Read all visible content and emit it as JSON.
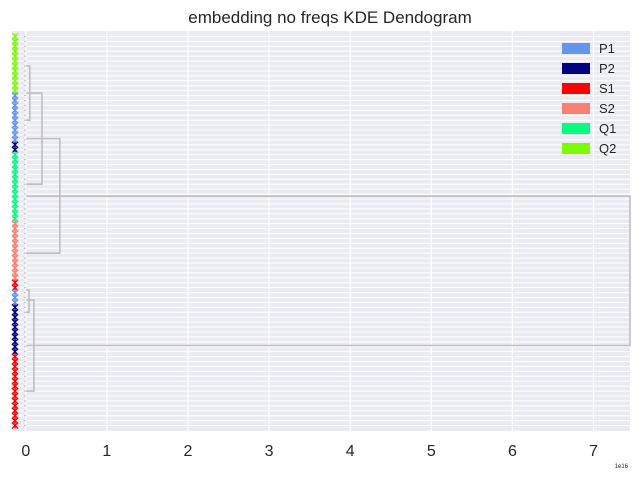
{
  "chart_data": {
    "type": "dendrogram",
    "title": "embedding no freqs KDE Dendogram",
    "orientation": "horizontal",
    "xlabel": "",
    "ylabel": "",
    "xlim": [
      -0.17,
      7.45
    ],
    "x_ticks": [
      0,
      1,
      2,
      3,
      4,
      5,
      6,
      7
    ],
    "x_tick_labels": [
      "0",
      "1",
      "2",
      "3",
      "4",
      "5",
      "6",
      "7"
    ],
    "x_offset_label": "1e16",
    "grid": true,
    "legend": {
      "placement": "top-right",
      "entries": [
        {
          "label": "P1",
          "color": "#6495ed"
        },
        {
          "label": "P2",
          "color": "#000080"
        },
        {
          "label": "S1",
          "color": "#ff0000"
        },
        {
          "label": "S2",
          "color": "#fa8072"
        },
        {
          "label": "Q1",
          "color": "#00ff7f"
        },
        {
          "label": "Q2",
          "color": "#7cfc00"
        }
      ]
    },
    "leaf_count": 80,
    "leaf_groups": [
      {
        "label": "Q2",
        "count": 12
      },
      {
        "label": "P1",
        "count": 10
      },
      {
        "label": "P2",
        "count": 2
      },
      {
        "label": "Q1",
        "count": 14
      },
      {
        "label": "S2",
        "count": 12
      },
      {
        "label": "S1",
        "count": 2
      },
      {
        "label": "P1",
        "count": 3
      },
      {
        "label": "P2",
        "count": 10
      },
      {
        "label": "S1",
        "count": 15
      }
    ],
    "merges": [
      {
        "x": 0.05,
        "y_top_leaf": 6,
        "y_bottom_leaf": 17
      },
      {
        "x": 0.2,
        "y_top_leaf": 11.5,
        "y_bottom_leaf": 30
      },
      {
        "x": 0.42,
        "y_top_leaf": 20.75,
        "y_bottom_leaf": 44
      },
      {
        "x": 0.04,
        "y_top_leaf": 51.5,
        "y_bottom_leaf": 56
      },
      {
        "x": 0.1,
        "y_top_leaf": 53.5,
        "y_bottom_leaf": 72
      },
      {
        "x": 7.45,
        "y_top_leaf": 32.4,
        "y_bottom_leaf": 62.75
      }
    ],
    "link_color": "#bfbfbf"
  }
}
